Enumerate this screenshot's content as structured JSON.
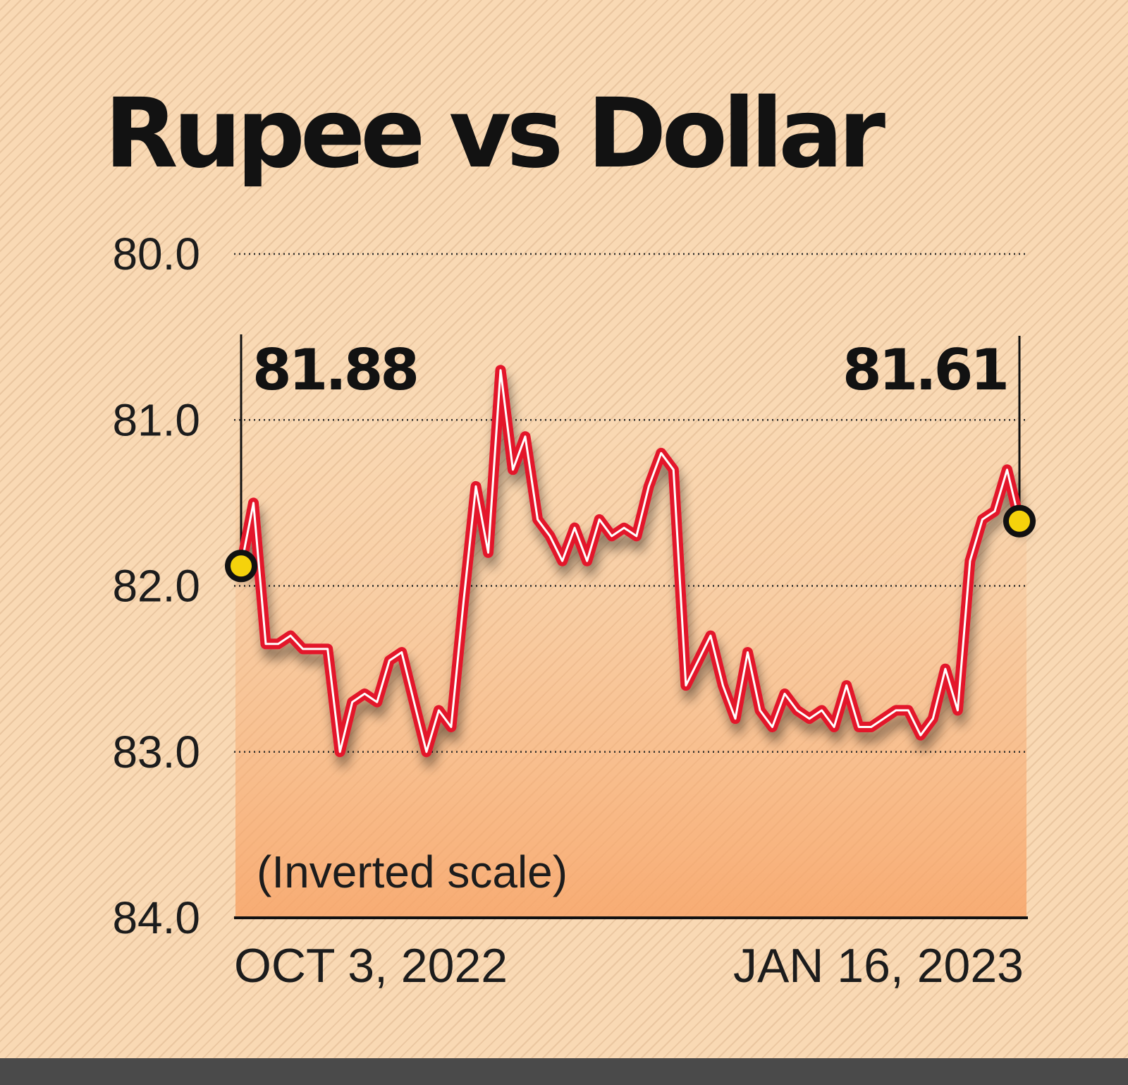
{
  "chart_data": {
    "type": "line",
    "title": "Rupee vs Dollar",
    "note": "(Inverted scale)",
    "y_axis": {
      "inverted": true,
      "ylim": [
        80.0,
        84.0
      ],
      "ticks": [
        "80.0",
        "81.0",
        "82.0",
        "83.0",
        "84.0"
      ],
      "grid": "dotted"
    },
    "x_axis": {
      "start_label": "OCT 3, 2022",
      "end_label": "JAN 16, 2023"
    },
    "annotations": {
      "start_value": "81.88",
      "end_value": "81.61"
    },
    "colors": {
      "line": "#e3122b",
      "line_highlight": "#ffffff",
      "marker": "#f5d20c",
      "fill_bottom": "#f7b07a"
    },
    "series": [
      {
        "values": [
          81.88,
          81.5,
          82.35,
          82.35,
          82.3,
          82.38,
          82.38,
          82.38,
          83.0,
          82.7,
          82.65,
          82.7,
          82.45,
          82.4,
          82.7,
          83.0,
          82.75,
          82.85,
          82.1,
          81.4,
          81.8,
          80.7,
          81.3,
          81.1,
          81.6,
          81.7,
          81.85,
          81.65,
          81.85,
          81.6,
          81.7,
          81.65,
          81.7,
          81.4,
          81.2,
          81.3,
          82.6,
          82.45,
          82.3,
          82.6,
          82.8,
          82.4,
          82.75,
          82.85,
          82.65,
          82.75,
          82.8,
          82.75,
          82.85,
          82.6,
          82.85,
          82.85,
          82.8,
          82.75,
          82.75,
          82.9,
          82.8,
          82.5,
          82.75,
          81.85,
          81.6,
          81.55,
          81.3,
          81.61
        ]
      }
    ]
  }
}
